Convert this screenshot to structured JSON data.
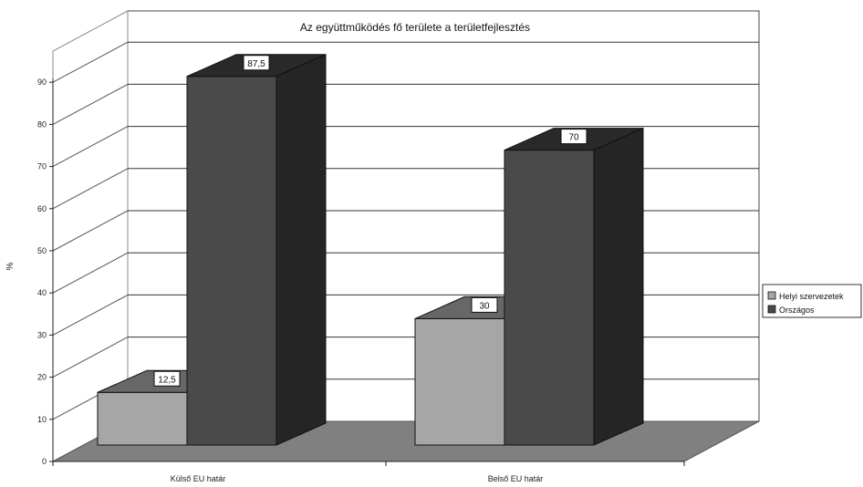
{
  "chart_data": {
    "type": "bar",
    "title": "Az együttműködés fő területe a területfejlesztés",
    "ylabel": "%",
    "xlabel": "",
    "ylim": [
      0,
      90
    ],
    "yticks": [
      0,
      10,
      20,
      30,
      40,
      50,
      60,
      70,
      80,
      90
    ],
    "categories": [
      "Külső EU határ",
      "Belső EU határ"
    ],
    "series": [
      {
        "name": "Helyi szervezetek",
        "values": [
          12.5,
          30
        ],
        "labels": [
          "12,5",
          "30"
        ],
        "color": "#a6a6a6"
      },
      {
        "name": "Országos",
        "values": [
          87.5,
          70
        ],
        "labels": [
          "87,5",
          "70"
        ],
        "color": "#4a4a4a"
      }
    ],
    "legend": "right",
    "grid": true,
    "floor_color": "#808080"
  }
}
